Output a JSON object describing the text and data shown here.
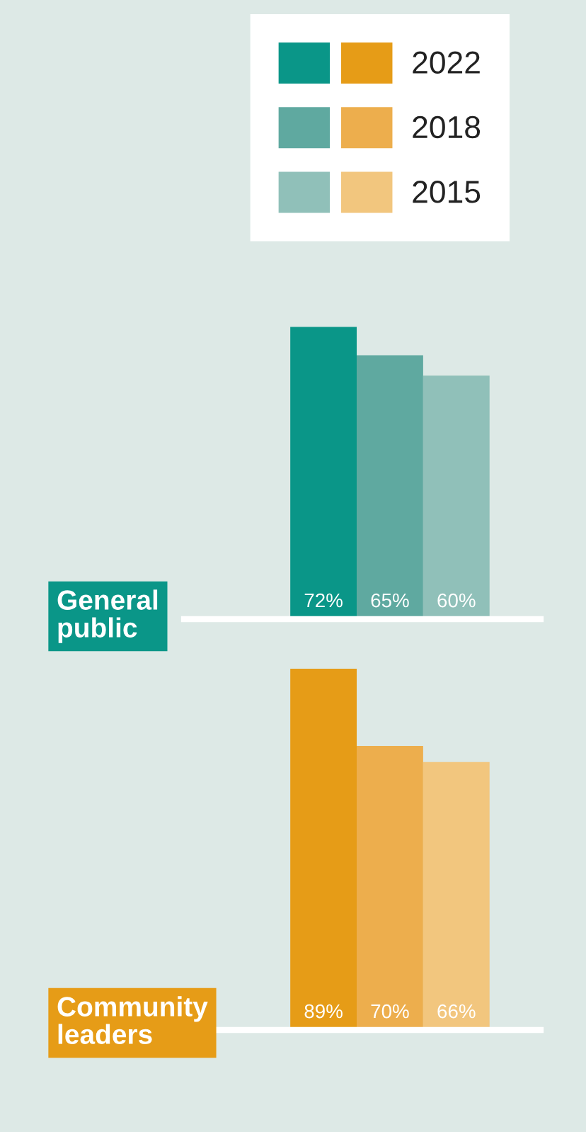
{
  "chart_data": [
    {
      "type": "bar",
      "title": "General\npublic",
      "categories": [
        null
      ],
      "tick_labels": false,
      "series": [
        {
          "color": "#0a9688",
          "values": [
            72
          ],
          "value_labels": [
            "72%"
          ]
        },
        {
          "color": "#5fa9a0",
          "values": [
            65
          ],
          "value_labels": [
            "65%"
          ]
        },
        {
          "color": "#90c0b9",
          "values": [
            60
          ],
          "value_labels": [
            "60%"
          ]
        }
      ]
    },
    {
      "type": "bar",
      "title": "Community\nleaders",
      "categories": [
        null
      ],
      "tick_labels": false,
      "legend": "top right",
      "series": [
        {
          "name": "2022",
          "color": "#e69c17",
          "values": [
            89
          ],
          "value_labels": [
            "89%"
          ]
        },
        {
          "name": "2018",
          "color": "#edae4d",
          "values": [
            70
          ],
          "value_labels": [
            "70%"
          ]
        },
        {
          "name": "2015",
          "color": "#f2c67e",
          "values": [
            66
          ],
          "value_labels": [
            "66%"
          ]
        }
      ]
    }
  ]
}
